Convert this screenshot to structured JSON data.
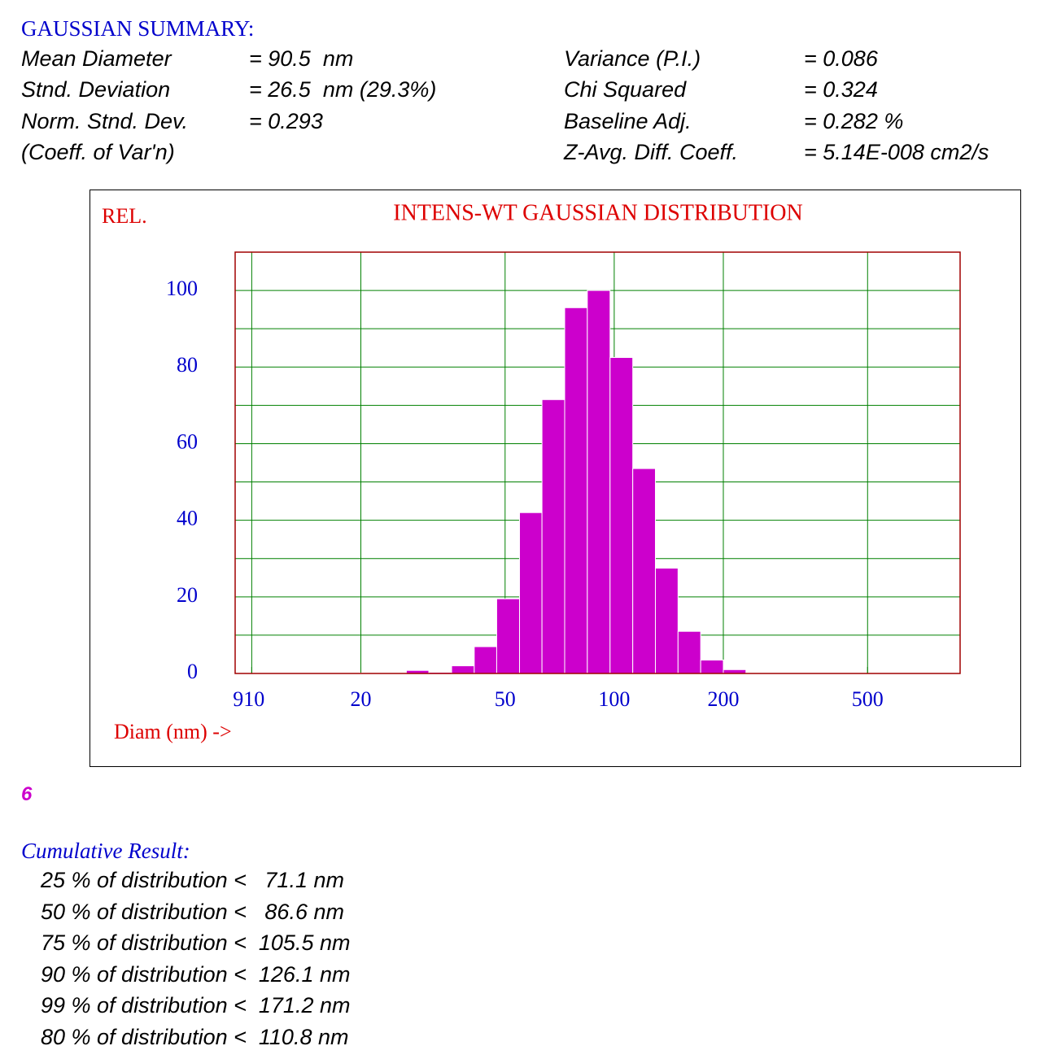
{
  "summary": {
    "title": "GAUSSIAN SUMMARY:",
    "left": [
      [
        "Mean Diameter",
        "= 90.5  nm"
      ],
      [
        "Stnd. Deviation",
        "= 26.5  nm (29.3%)"
      ],
      [
        "Norm. Stnd. Dev.",
        "= 0.293"
      ],
      [
        "(Coeff. of Var'n)"
      ]
    ],
    "right": [
      [
        "Variance (P.I.)",
        "= 0.086"
      ],
      [
        "Chi Squared",
        "= 0.324"
      ],
      [
        "Baseline Adj.",
        "= 0.282 %"
      ],
      [
        "Z-Avg. Diff. Coeff.",
        "= 5.14E-008 cm2/s"
      ]
    ]
  },
  "chart_data": {
    "type": "histogram",
    "title": "INTENS-WT GAUSSIAN DISTRIBUTION",
    "y_label": "REL.",
    "x_label": "Diam (nm) ->",
    "bins": [
      20.0,
      23.1,
      26.7,
      30.8,
      35.6,
      41.1,
      47.4,
      54.8,
      63.2,
      73.0,
      84.3,
      97.4,
      112.5,
      129.9,
      150.0,
      173.2,
      200.0,
      230.9,
      266.7,
      308.0
    ],
    "values": [
      0.1,
      0.1,
      0.8,
      0.3,
      2,
      7,
      19.5,
      42,
      71.5,
      95.5,
      100,
      82.5,
      53.5,
      27.5,
      11,
      3.5,
      1,
      0.2,
      0.2
    ],
    "color": "#cc00cc",
    "x_log": true,
    "xlim": [
      9,
      900
    ],
    "xticks": [
      {
        "value": 9,
        "label": "9"
      },
      10,
      20,
      50,
      100,
      200,
      500
    ],
    "xgrid": [
      10,
      20,
      50,
      100,
      200,
      500
    ],
    "ylim": [
      0,
      110
    ],
    "yticks": [
      0,
      20,
      40,
      60,
      80,
      100
    ],
    "ygrid": [
      10,
      20,
      30,
      40,
      50,
      60,
      70,
      80,
      90,
      100
    ]
  },
  "marker": "6",
  "cumulative": {
    "title": "Cumulative Result:",
    "rows": [
      "25 % of distribution <   71.1 nm",
      "50 % of distribution <   86.6 nm",
      "75 % of distribution <  105.5 nm",
      "90 % of distribution <  126.1 nm",
      "99 % of distribution <  171.2 nm",
      "80 % of distribution <  110.8 nm"
    ]
  }
}
